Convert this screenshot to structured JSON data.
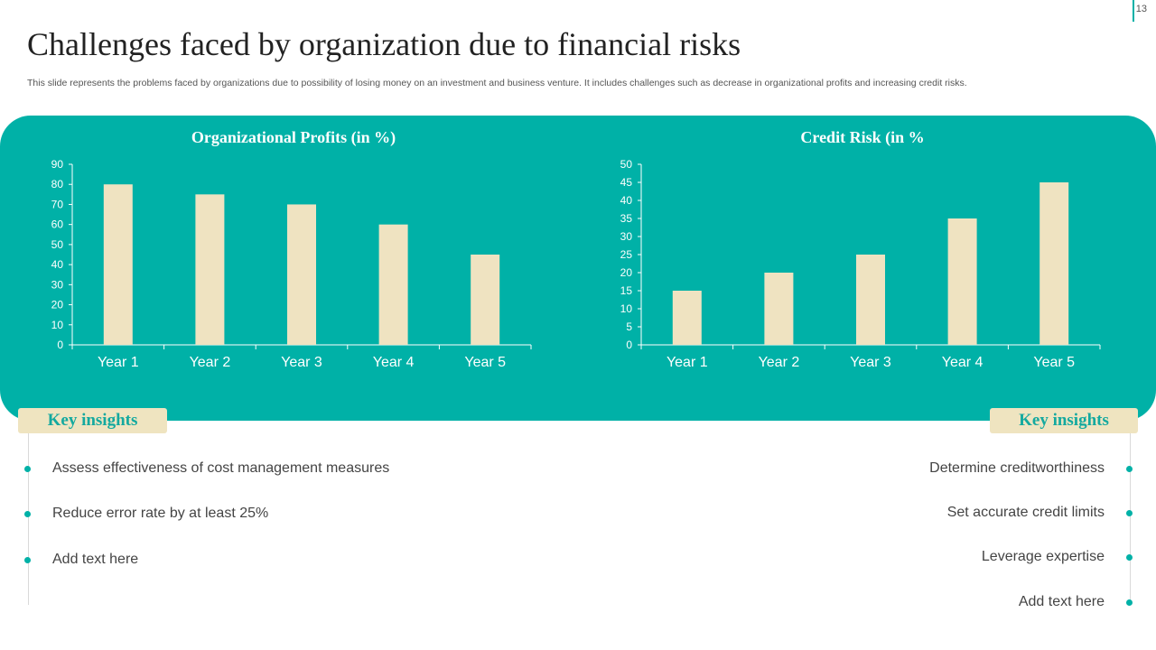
{
  "slide": {
    "page_number": "13",
    "title": "Challenges faced by organization due to financial risks",
    "subtitle": "This slide represents the problems faced by organizations due to possibility of losing money on an investment and business venture. It includes challenges such as decrease in organizational profits and increasing credit risks."
  },
  "colors": {
    "accent": "#00b1a7",
    "bar": "#efe3c1",
    "insight_box": "#efe4c0"
  },
  "chart_data": [
    {
      "type": "bar",
      "title": "Organizational Profits (in %)",
      "categories": [
        "Year 1",
        "Year 2",
        "Year 3",
        "Year 4",
        "Year 5"
      ],
      "values": [
        80,
        75,
        70,
        60,
        45
      ],
      "ylim": [
        0,
        90
      ],
      "yticks": [
        0,
        10,
        20,
        30,
        40,
        50,
        60,
        70,
        80,
        90
      ],
      "grid": false
    },
    {
      "type": "bar",
      "title": "Credit Risk (in %",
      "categories": [
        "Year 1",
        "Year 2",
        "Year 3",
        "Year 4",
        "Year 5"
      ],
      "values": [
        15,
        20,
        25,
        35,
        45
      ],
      "ylim": [
        0,
        50
      ],
      "yticks": [
        0,
        5,
        10,
        15,
        20,
        25,
        30,
        35,
        40,
        45,
        50
      ],
      "grid": false
    }
  ],
  "insights": {
    "left": {
      "label": "Key insights",
      "items": [
        "Assess effectiveness of cost management measures",
        "Reduce error rate by at least 25%",
        "Add text here"
      ]
    },
    "right": {
      "label": "Key insights",
      "items": [
        "Determine creditworthiness",
        "Set accurate credit limits",
        "Leverage expertise",
        "Add text here"
      ]
    }
  }
}
